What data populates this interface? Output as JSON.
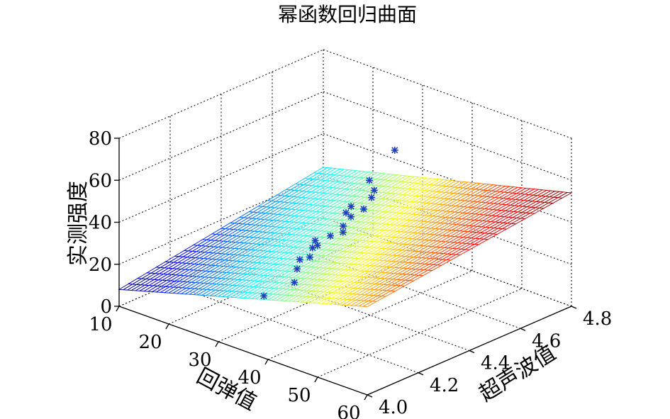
{
  "chart_data": {
    "type": "surface3d",
    "title": "幂函数回归曲面",
    "xlabel": "回弹值",
    "ylabel": "超声波值",
    "zlabel": "实测强度",
    "xlim": [
      10,
      60
    ],
    "ylim": [
      4.0,
      4.8
    ],
    "zlim": [
      0,
      80
    ],
    "xticks": [
      "10",
      "20",
      "30",
      "40",
      "50",
      "60"
    ],
    "yticks": [
      "4.0",
      "4.2",
      "4.4",
      "4.6",
      "4.8"
    ],
    "zticks": [
      "0",
      "20",
      "40",
      "60",
      "80"
    ],
    "grid": true,
    "colormap": "jet",
    "surface": {
      "corners": [
        {
          "x": 10,
          "y": 4.0,
          "z": 8
        },
        {
          "x": 10,
          "y": 4.8,
          "z": 24
        },
        {
          "x": 60,
          "y": 4.8,
          "z": 54
        },
        {
          "x": 60,
          "y": 4.0,
          "z": 42
        }
      ]
    },
    "series": [
      {
        "type": "scatter",
        "marker": "*",
        "color": "#1f3fbf",
        "points": [
          {
            "x": 33,
            "y": 4.12,
            "z": 18
          },
          {
            "x": 34,
            "y": 4.22,
            "z": 20
          },
          {
            "x": 33,
            "y": 4.25,
            "z": 24
          },
          {
            "x": 32,
            "y": 4.28,
            "z": 26
          },
          {
            "x": 33,
            "y": 4.3,
            "z": 27
          },
          {
            "x": 32,
            "y": 4.33,
            "z": 29
          },
          {
            "x": 31,
            "y": 4.36,
            "z": 30
          },
          {
            "x": 33,
            "y": 4.33,
            "z": 31
          },
          {
            "x": 32,
            "y": 4.4,
            "z": 31
          },
          {
            "x": 32,
            "y": 4.45,
            "z": 33
          },
          {
            "x": 31,
            "y": 4.5,
            "z": 34
          },
          {
            "x": 33,
            "y": 4.43,
            "z": 32
          },
          {
            "x": 30,
            "y": 4.5,
            "z": 35
          },
          {
            "x": 31,
            "y": 4.55,
            "z": 35
          },
          {
            "x": 30,
            "y": 4.6,
            "z": 37
          },
          {
            "x": 30,
            "y": 4.52,
            "z": 37
          },
          {
            "x": 29,
            "y": 4.63,
            "z": 38
          },
          {
            "x": 27,
            "y": 4.65,
            "z": 40
          },
          {
            "x": 28,
            "y": 4.73,
            "z": 51
          }
        ]
      }
    ]
  }
}
